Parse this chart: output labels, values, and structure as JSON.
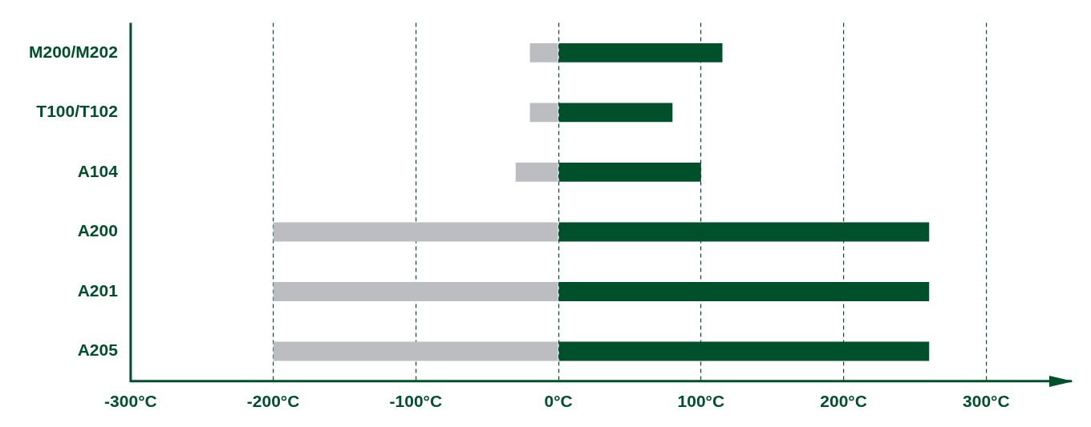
{
  "chart_data": {
    "type": "bar",
    "orientation": "horizontal",
    "stacked": true,
    "categories": [
      "M200/M202",
      "T100/T102",
      "A104",
      "A200",
      "A201",
      "A205"
    ],
    "series": [
      {
        "color": "#bcbdc0",
        "values": [
          -20,
          -20,
          -30,
          -200,
          -200,
          -200
        ]
      },
      {
        "color": "#00502b",
        "values": [
          115,
          80,
          100,
          260,
          260,
          260
        ]
      }
    ],
    "xlim": [
      -300,
      360
    ],
    "xticks": [
      {
        "value": -300,
        "label": "-300°C"
      },
      {
        "value": -200,
        "label": "-200°C"
      },
      {
        "value": -100,
        "label": "-100°C"
      },
      {
        "value": 0,
        "label": "0°C"
      },
      {
        "value": 100,
        "label": "100°C"
      },
      {
        "value": 200,
        "label": "200°C"
      },
      {
        "value": 300,
        "label": "300°C"
      }
    ],
    "grid": "x",
    "legend": false
  }
}
